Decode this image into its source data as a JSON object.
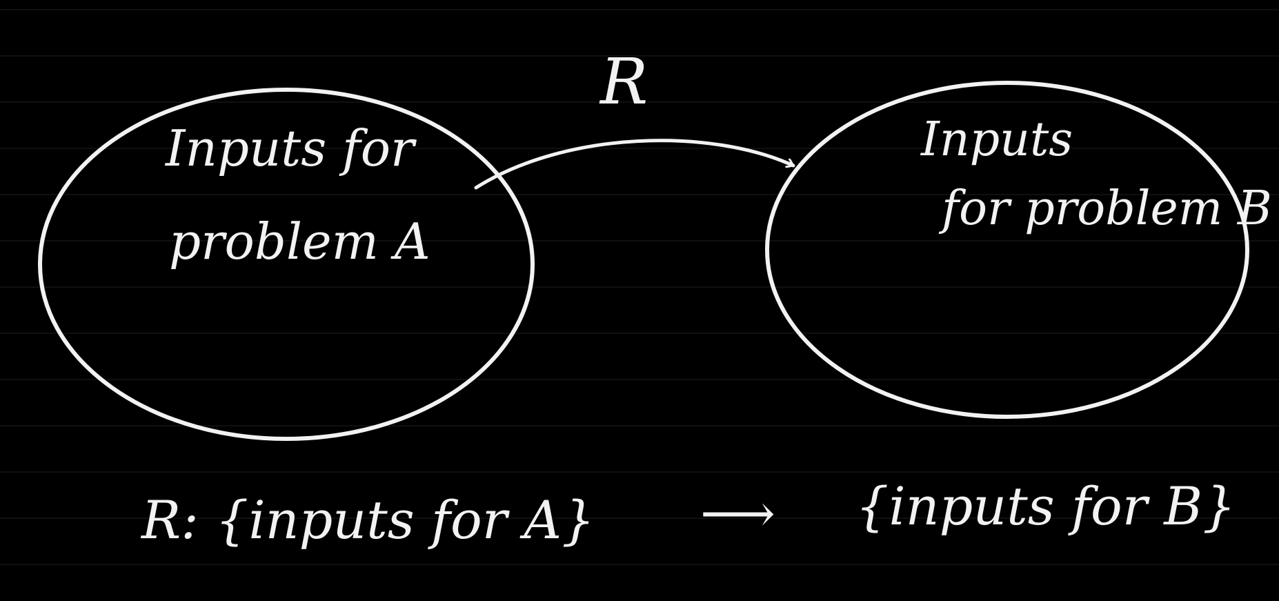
{
  "colors": {
    "background": "#000000",
    "ink": "#f2f2f2",
    "rule_line": "#1f1f1f"
  },
  "diagram": {
    "left_set": {
      "line1": "Inputs for",
      "line2": "problem A"
    },
    "right_set": {
      "line1": "Inputs",
      "line2": "for problem B"
    },
    "arrow_label": "R"
  },
  "formula": {
    "lhs": "R: {inputs for A}",
    "arrow": "⟶",
    "rhs": "{inputs for B}"
  }
}
